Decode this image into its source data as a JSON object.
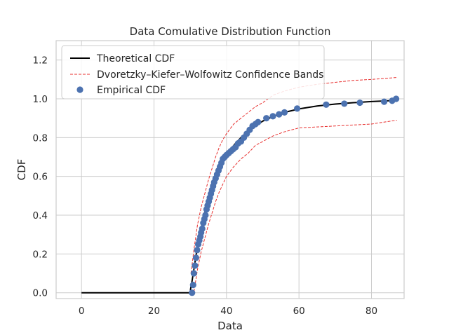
{
  "chart_data": {
    "type": "line",
    "title": "Data Comulative Distribution Function",
    "xlabel": "Data",
    "ylabel": "CDF",
    "xlim": [
      -7,
      89
    ],
    "ylim": [
      -0.03,
      1.3
    ],
    "x_ticks": [
      0,
      20,
      40,
      60,
      80
    ],
    "y_ticks": [
      0.0,
      0.2,
      0.4,
      0.6,
      0.8,
      1.0,
      1.2
    ],
    "x_tick_labels": [
      "0",
      "20",
      "40",
      "60",
      "80"
    ],
    "y_tick_labels": [
      "0.0",
      "0.2",
      "0.4",
      "0.6",
      "0.8",
      "1.0",
      "1.2"
    ],
    "grid": true,
    "legend_position": "top-left",
    "series": [
      {
        "name": "Theoretical CDF",
        "kind": "line",
        "color": "#000000",
        "x": [
          0,
          30,
          30.1,
          30.5,
          31,
          31.5,
          32,
          32.5,
          33,
          33.5,
          34,
          35,
          36,
          37,
          38,
          39,
          40,
          42,
          44,
          46,
          48,
          50,
          53,
          56,
          60,
          65,
          70,
          75,
          80,
          87
        ],
        "y": [
          0,
          0,
          0.02,
          0.06,
          0.12,
          0.18,
          0.24,
          0.29,
          0.33,
          0.37,
          0.41,
          0.48,
          0.54,
          0.6,
          0.64,
          0.68,
          0.71,
          0.76,
          0.8,
          0.835,
          0.86,
          0.885,
          0.91,
          0.93,
          0.948,
          0.963,
          0.973,
          0.98,
          0.986,
          0.992
        ]
      },
      {
        "name": "Dvoretzky–Kiefer–Wolfowitz Confidence Bands",
        "kind": "band",
        "color": "#e8302f",
        "x": [
          30.2,
          31,
          32,
          33,
          34,
          35,
          36,
          37,
          38,
          39,
          40,
          42,
          44,
          46,
          48,
          50,
          53,
          56,
          60,
          65,
          70,
          75,
          80,
          87
        ],
        "upper": [
          0.1,
          0.22,
          0.35,
          0.44,
          0.51,
          0.58,
          0.64,
          0.7,
          0.75,
          0.79,
          0.82,
          0.87,
          0.9,
          0.93,
          0.96,
          0.98,
          1.02,
          1.04,
          1.06,
          1.075,
          1.085,
          1.095,
          1.1,
          1.11
        ],
        "lower": [
          0.0,
          0.0,
          0.12,
          0.21,
          0.28,
          0.35,
          0.41,
          0.47,
          0.52,
          0.56,
          0.6,
          0.65,
          0.69,
          0.72,
          0.76,
          0.78,
          0.81,
          0.83,
          0.85,
          0.855,
          0.86,
          0.865,
          0.87,
          0.89
        ]
      },
      {
        "name": "Empirical CDF",
        "kind": "scatter",
        "color": "#4c72b0",
        "x": [
          30.5,
          30.8,
          31.0,
          31.3,
          31.6,
          31.9,
          32.2,
          32.5,
          32.8,
          33.0,
          33.3,
          33.6,
          33.9,
          34.2,
          34.5,
          34.8,
          35.1,
          35.4,
          35.7,
          36.0,
          36.3,
          36.6,
          37.0,
          37.4,
          37.8,
          38.2,
          38.6,
          39.0,
          39.5,
          40.0,
          40.6,
          41.2,
          41.8,
          42.5,
          43.2,
          44.0,
          44.8,
          45.6,
          46.4,
          47.2,
          48.0,
          48.7,
          51.0,
          52.8,
          54.5,
          56.0,
          59.5,
          67.5,
          72.5,
          76.8,
          83.5,
          85.7,
          86.8
        ],
        "y": [
          0.0,
          0.04,
          0.1,
          0.14,
          0.18,
          0.22,
          0.25,
          0.27,
          0.29,
          0.31,
          0.33,
          0.36,
          0.38,
          0.4,
          0.43,
          0.45,
          0.47,
          0.49,
          0.51,
          0.53,
          0.55,
          0.57,
          0.59,
          0.61,
          0.63,
          0.65,
          0.67,
          0.69,
          0.7,
          0.71,
          0.72,
          0.73,
          0.74,
          0.75,
          0.77,
          0.78,
          0.8,
          0.82,
          0.84,
          0.86,
          0.87,
          0.88,
          0.9,
          0.91,
          0.92,
          0.93,
          0.95,
          0.97,
          0.975,
          0.98,
          0.985,
          0.99,
          1.0
        ]
      }
    ]
  }
}
